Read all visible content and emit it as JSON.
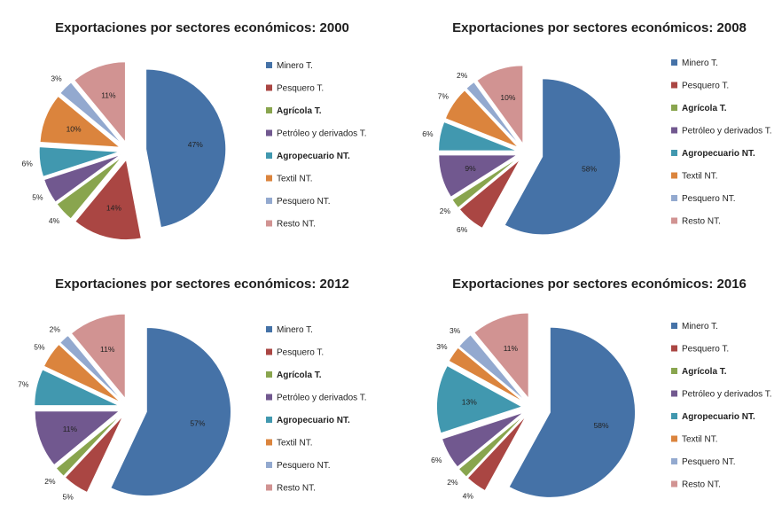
{
  "chart_data": [
    {
      "type": "pie",
      "title": "Exportaciones por sectores económicos: 2000",
      "categories": [
        "Minero T.",
        "Pesquero T.",
        "Agrícola T.",
        "Petróleo y derivados T.",
        "Agropecuario NT.",
        "Textil NT.",
        "Pesquero NT.",
        "Resto NT."
      ],
      "values": [
        47,
        14,
        4,
        5,
        6,
        10,
        3,
        11
      ],
      "data_labels": [
        "47%",
        "14%",
        "4%",
        "5%",
        "6%",
        "10%",
        "3%",
        "11%"
      ],
      "legend_position": "right",
      "exploded": true
    },
    {
      "type": "pie",
      "title": "Exportaciones por sectores económicos: 2008",
      "categories": [
        "Minero T.",
        "Pesquero T.",
        "Agrícola T.",
        "Petróleo y derivados T.",
        "Agropecuario NT.",
        "Textil NT.",
        "Pesquero NT.",
        "Resto NT."
      ],
      "values": [
        58,
        6,
        2,
        9,
        6,
        7,
        2,
        10
      ],
      "data_labels": [
        "58%",
        "6%",
        "2%",
        "9%",
        "6%",
        "7%",
        "2%",
        "10%"
      ],
      "legend_position": "right",
      "exploded": true
    },
    {
      "type": "pie",
      "title": "Exportaciones por sectores económicos: 2012",
      "categories": [
        "Minero T.",
        "Pesquero T.",
        "Agrícola T.",
        "Petróleo y derivados T.",
        "Agropecuario NT.",
        "Textil NT.",
        "Pesquero NT.",
        "Resto NT."
      ],
      "values": [
        57,
        5,
        2,
        11,
        7,
        5,
        2,
        11
      ],
      "data_labels": [
        "57%",
        "5%",
        "2%",
        "11%",
        "7%",
        "5%",
        "2%",
        "11%"
      ],
      "legend_position": "right",
      "exploded": true
    },
    {
      "type": "pie",
      "title": "Exportaciones por sectores económicos: 2016",
      "categories": [
        "Minero T.",
        "Pesquero T.",
        "Agrícola T.",
        "Petróleo y derivados T.",
        "Agropecuario NT.",
        "Textil NT.",
        "Pesquero NT.",
        "Resto NT."
      ],
      "values": [
        58,
        4,
        2,
        6,
        13,
        3,
        3,
        11
      ],
      "data_labels": [
        "58%",
        "4%",
        "2%",
        "6%",
        "13%",
        "3%",
        "3%",
        "11%"
      ],
      "legend_position": "right",
      "exploded": true
    }
  ],
  "colors": [
    "#4572a7",
    "#aa4643",
    "#89a54e",
    "#71588f",
    "#4198af",
    "#db843d",
    "#93a9cf",
    "#d19392"
  ],
  "legend_bold": [
    false,
    false,
    true,
    false,
    true,
    false,
    false,
    false
  ]
}
